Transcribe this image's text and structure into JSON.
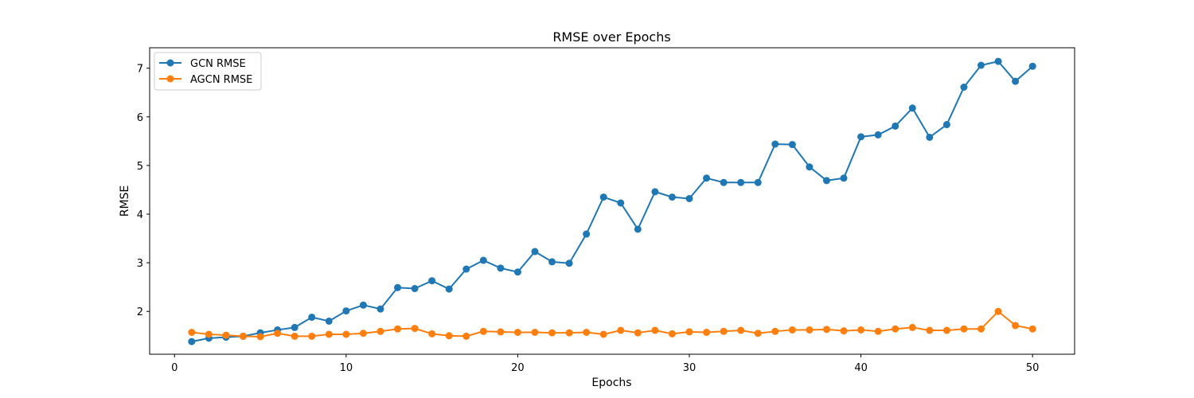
{
  "chart_data": {
    "type": "line",
    "title": "RMSE over Epochs",
    "xlabel": "Epochs",
    "ylabel": "RMSE",
    "xlim": [
      -1.45,
      52.45
    ],
    "ylim": [
      1.12,
      7.42
    ],
    "xticks": [
      0,
      10,
      20,
      30,
      40,
      50
    ],
    "yticks": [
      2,
      3,
      4,
      5,
      6,
      7
    ],
    "grid": false,
    "legend_position": "top-left",
    "x": [
      1,
      2,
      3,
      4,
      5,
      6,
      7,
      8,
      9,
      10,
      11,
      12,
      13,
      14,
      15,
      16,
      17,
      18,
      19,
      20,
      21,
      22,
      23,
      24,
      25,
      26,
      27,
      28,
      29,
      30,
      31,
      32,
      33,
      34,
      35,
      36,
      37,
      38,
      39,
      40,
      41,
      42,
      43,
      44,
      45,
      46,
      47,
      48,
      49,
      50
    ],
    "series": [
      {
        "name": "GCN RMSE",
        "color": "#1f77b4",
        "values": [
          1.38,
          1.45,
          1.47,
          1.49,
          1.56,
          1.62,
          1.67,
          1.88,
          1.8,
          2.01,
          2.13,
          2.05,
          2.49,
          2.47,
          2.63,
          2.46,
          2.87,
          3.05,
          2.89,
          2.81,
          3.23,
          3.02,
          2.99,
          3.59,
          4.35,
          4.23,
          3.69,
          4.46,
          4.35,
          4.32,
          4.74,
          4.65,
          4.65,
          4.65,
          5.44,
          5.43,
          4.97,
          4.69,
          4.74,
          5.59,
          5.63,
          5.81,
          6.18,
          5.58,
          5.84,
          6.61,
          7.06,
          7.14,
          6.73,
          7.04
        ]
      },
      {
        "name": "AGCN RMSE",
        "color": "#ff7f0e",
        "values": [
          1.57,
          1.53,
          1.51,
          1.49,
          1.48,
          1.55,
          1.49,
          1.49,
          1.53,
          1.53,
          1.55,
          1.59,
          1.64,
          1.65,
          1.54,
          1.5,
          1.49,
          1.59,
          1.58,
          1.57,
          1.57,
          1.56,
          1.56,
          1.57,
          1.53,
          1.61,
          1.56,
          1.61,
          1.54,
          1.58,
          1.57,
          1.59,
          1.61,
          1.55,
          1.59,
          1.62,
          1.62,
          1.63,
          1.6,
          1.62,
          1.59,
          1.64,
          1.67,
          1.61,
          1.61,
          1.64,
          1.64,
          2.0,
          1.71,
          1.64
        ]
      }
    ]
  }
}
